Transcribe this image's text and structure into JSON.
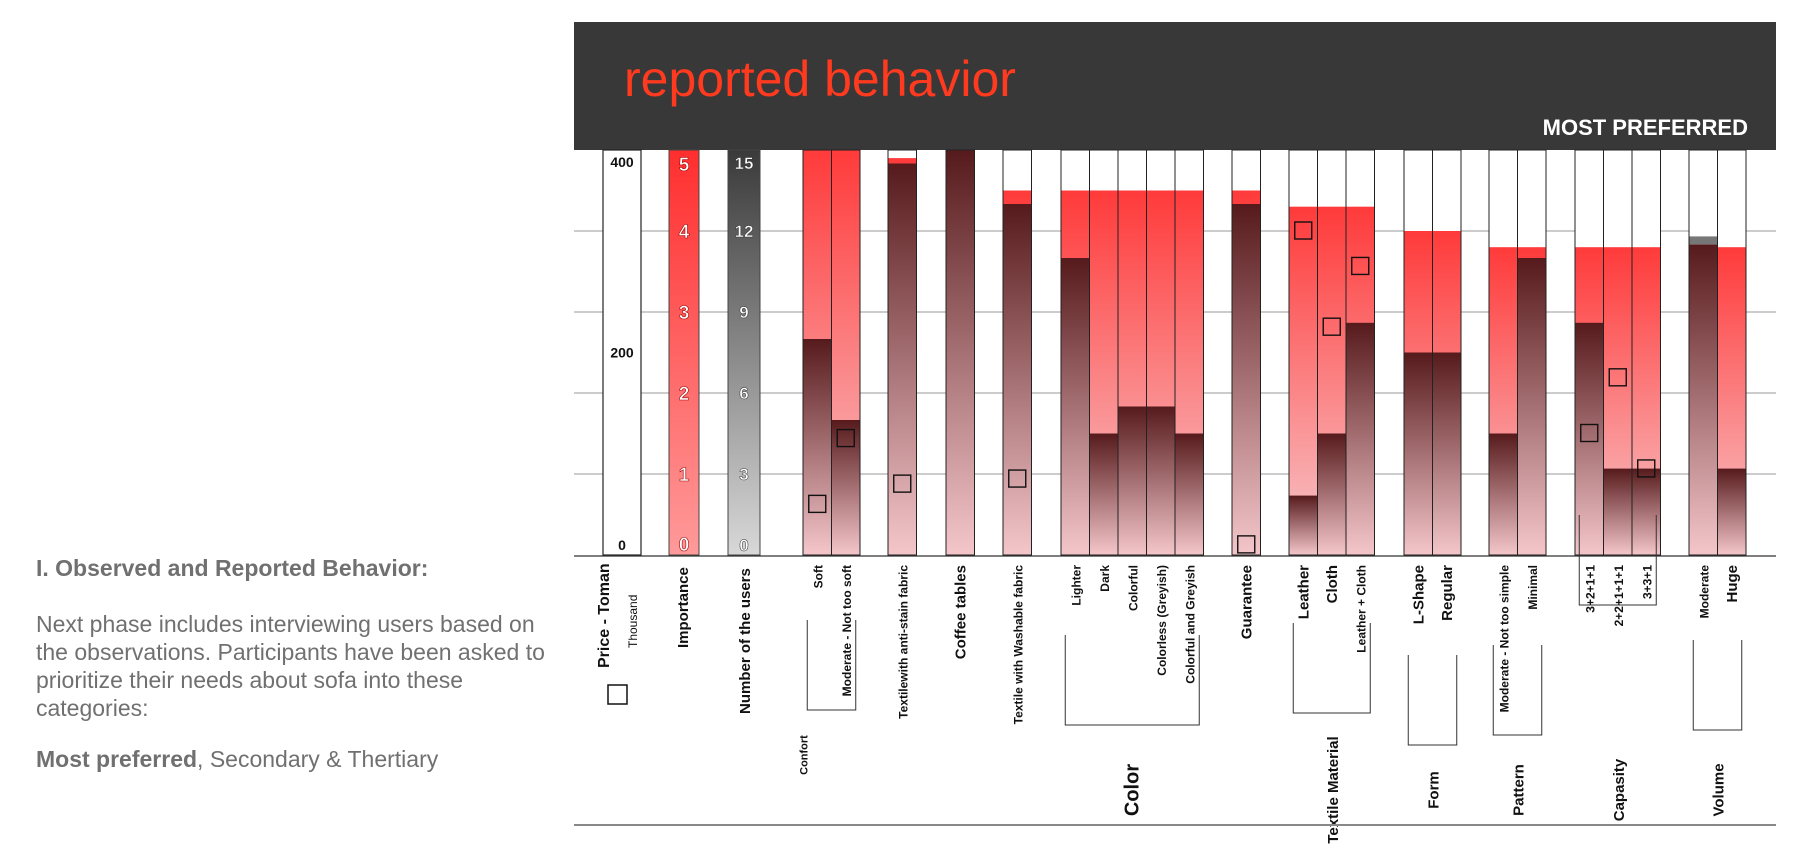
{
  "left_panel": {
    "heading": "I. Observed and Reported Behavior:",
    "body": "Next phase includes interviewing users based on the observations. Participants have been asked to prioritize their needs about sofa into these categories:",
    "footer_bold": "Most preferred",
    "footer_rest": ", Secondary & Thertiary"
  },
  "chart_data": {
    "type": "bar",
    "title": "reported behavior",
    "subtitle": "MOST PREFERRED",
    "colors": {
      "banner": "#383838",
      "title": "#ff3a1f",
      "top_bar": "#ff3a3a",
      "dark_bar": "#5a1e20",
      "pale_bar": "#f6c8cc",
      "grey_cap": "#777777"
    },
    "grid": true,
    "importance_scale": [
      "5",
      "4",
      "3",
      "2",
      "1",
      "0"
    ],
    "users_scale": [
      "15",
      "12",
      "9",
      "6",
      "3",
      "0"
    ],
    "price_axis": {
      "label": "Price - Toman",
      "unit": "Thousand",
      "ticks": [
        "400",
        "200",
        "0"
      ],
      "ylim": [
        0,
        400
      ]
    },
    "importance_label": "Importance",
    "users_label": "Number of the users",
    "series": [
      {
        "name": "Importance"
      },
      {
        "name": "Number of the users"
      }
    ],
    "groups": [
      {
        "name": "Confort",
        "bars": [
          {
            "label": "Soft",
            "importance": 5.0,
            "users": 8,
            "marker_price": 50
          },
          {
            "label": "Moderate - Not too soft",
            "importance": 5.0,
            "users": 5,
            "marker_price": 115
          }
        ]
      },
      {
        "name": "",
        "bars": [
          {
            "label": "Textilewith anti-stain fabric",
            "importance": 4.9,
            "users": 14.5,
            "marker_price": 70
          }
        ]
      },
      {
        "name": "",
        "bars": [
          {
            "label": "Coffee tables",
            "importance": 5.0,
            "users": 15,
            "grey": 15,
            "marker_price": null
          }
        ]
      },
      {
        "name": "",
        "bars": [
          {
            "label": "Textile with Washable fabric",
            "importance": 4.5,
            "users": 13,
            "marker_price": 75
          }
        ]
      },
      {
        "name": "Color",
        "bars": [
          {
            "label": "Lighter",
            "importance": 4.5,
            "users": 11,
            "marker_price": null
          },
          {
            "label": "Dark",
            "importance": 4.5,
            "users": 4.5,
            "marker_price": null
          },
          {
            "label": "Colorful",
            "importance": 4.5,
            "users": 5.5,
            "marker_price": null
          },
          {
            "label": "Colorless (Greyish)",
            "importance": 4.5,
            "users": 5.5,
            "marker_price": null
          },
          {
            "label": "Colorful and Greyish",
            "importance": 4.5,
            "users": 4.5,
            "marker_price": null
          }
        ]
      },
      {
        "name": "",
        "bars": [
          {
            "label": "Guarantee",
            "importance": 4.5,
            "users": 13,
            "marker_price": 10
          }
        ]
      },
      {
        "name": "Textile Material",
        "bars": [
          {
            "label": "Leather",
            "importance": 4.3,
            "users": 2.2,
            "marker_price": 320
          },
          {
            "label": "Cloth",
            "importance": 4.3,
            "users": 4.5,
            "marker_price": 225
          },
          {
            "label": "Leather + Cloth",
            "importance": 4.3,
            "users": 8.6,
            "marker_price": 285
          }
        ]
      },
      {
        "name": "Form",
        "bars": [
          {
            "label": "L-Shape",
            "importance": 4.0,
            "users": 7.5,
            "marker_price": null
          },
          {
            "label": "Regular",
            "importance": 4.0,
            "users": 7.5,
            "marker_price": null
          }
        ]
      },
      {
        "name": "Pattern",
        "bars": [
          {
            "label": "Moderate - Not too simple",
            "importance": 3.8,
            "users": 4.5,
            "marker_price": null
          },
          {
            "label": "Minimal",
            "importance": 3.8,
            "users": 11,
            "marker_price": null
          }
        ]
      },
      {
        "name": "Capasity",
        "bars": [
          {
            "label": "3+2+1+1",
            "importance": 3.8,
            "users": 8.6,
            "marker_price": 120
          },
          {
            "label": "2+2+1+1+1",
            "importance": 3.8,
            "users": 3.2,
            "marker_price": 175
          },
          {
            "label": "3+3+1",
            "importance": 3.8,
            "users": 3.2,
            "marker_price": 85
          }
        ]
      },
      {
        "name": "Volume",
        "bars": [
          {
            "label": "Moderate",
            "importance": 3.8,
            "users": 11.5,
            "grey": 11.8,
            "marker_price": null
          },
          {
            "label": "Huge",
            "importance": 3.8,
            "users": 3.2,
            "marker_price": null
          }
        ]
      }
    ]
  }
}
